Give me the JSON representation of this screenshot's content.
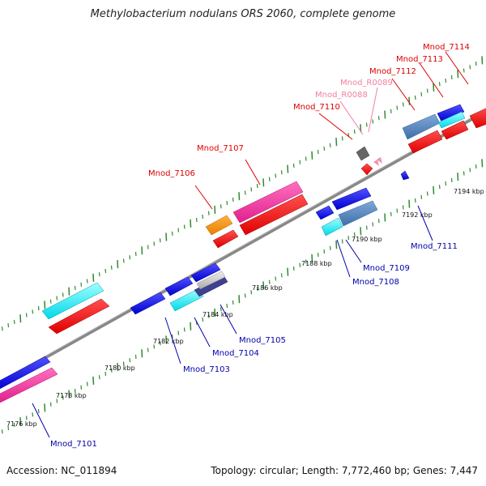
{
  "title": "Methylobacterium nodulans ORS 2060, complete genome",
  "accession": "Accession: NC_011894",
  "summary": "Topology: circular; Length: 7,772,460 bp; Genes: 7,447",
  "colors": {
    "backbone": "#888888",
    "tick": "#2e8b2e",
    "forward_label": "#dd0000",
    "reverse_label": "#0000aa",
    "rna_label": "#f080a0"
  },
  "scale_labels": [
    "7176 kbp",
    "7178 kbp",
    "7180 kbp",
    "7182 kbp",
    "7184 kbp",
    "7186 kbp",
    "7188 kbp",
    "7190 kbp",
    "7192 kbp",
    "7194 kbp"
  ],
  "forward_genes": [
    "Mnod_7106",
    "Mnod_7107",
    "Mnod_7110",
    "Mnod_R0088",
    "Mnod_R0089",
    "Mnod_7112",
    "Mnod_7113",
    "Mnod_7114"
  ],
  "reverse_genes": [
    "Mnod_7101",
    "Mnod_7103",
    "Mnod_7104",
    "Mnod_7105",
    "Mnod_7108",
    "Mnod_7109",
    "Mnod_7111"
  ]
}
